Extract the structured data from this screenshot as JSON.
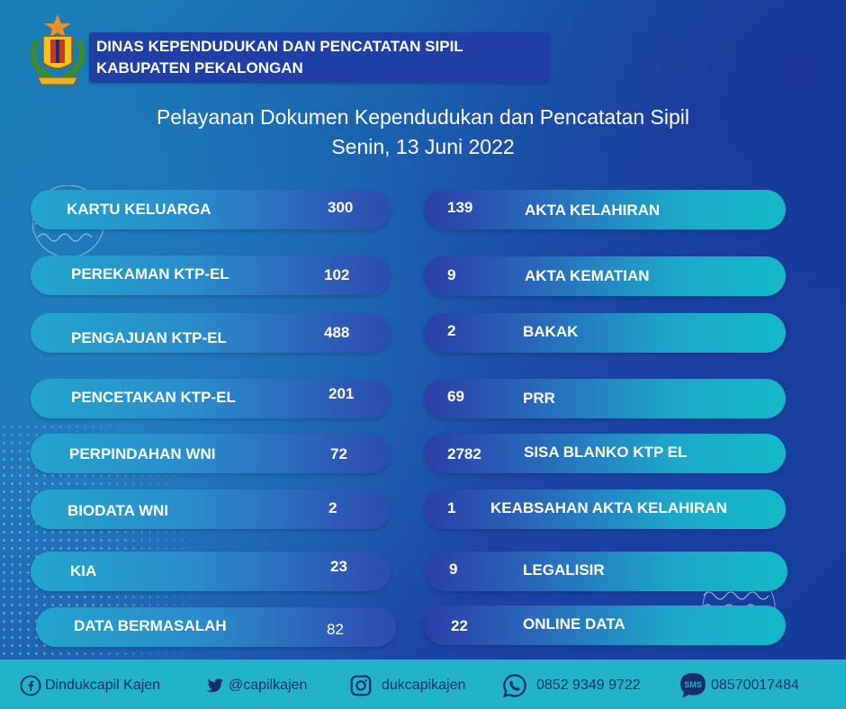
{
  "header": {
    "line1": "DINAS KEPENDUDUKAN DAN PENCATATAN SIPIL",
    "line2": "KABUPATEN PEKALONGAN"
  },
  "title": {
    "line1": "Pelayanan Dokumen Kependudukan dan Pencatatan Sipil",
    "line2": "Senin, 13 Juni 2022"
  },
  "left_items": [
    {
      "label": "KARTU KELUARGA",
      "value": "300"
    },
    {
      "label": "PEREKAMAN KTP-EL",
      "value": "102"
    },
    {
      "label": "PENGAJUAN KTP-EL",
      "value": "488"
    },
    {
      "label": "PENCETAKAN KTP-EL",
      "value": "201"
    },
    {
      "label": "PERPINDAHAN WNI",
      "value": "72"
    },
    {
      "label": "BIODATA WNI",
      "value": "2"
    },
    {
      "label": "KIA",
      "value": "23"
    },
    {
      "label": "DATA BERMASALAH",
      "value": "82"
    }
  ],
  "right_items": [
    {
      "label": "AKTA KELAHIRAN",
      "value": "139"
    },
    {
      "label": "AKTA KEMATIAN",
      "value": "9"
    },
    {
      "label": "BAKAK",
      "value": "2"
    },
    {
      "label": "PRR",
      "value": "69"
    },
    {
      "label": "SISA BLANKO KTP EL",
      "value": "2782"
    },
    {
      "label": "KEABSAHAN AKTA KELAHIRAN",
      "value": "1"
    },
    {
      "label": "LEGALISIR",
      "value": "9"
    },
    {
      "label": "ONLINE DATA",
      "value": "22"
    }
  ],
  "footer": {
    "facebook": "Dindukcapil Kajen",
    "twitter": "@capilkajen",
    "instagram": "dukcapikajen",
    "whatsapp": "0852 9349 9722",
    "sms": "08570017484",
    "sms_badge": "SMS",
    "icons": [
      "facebook-icon",
      "twitter-icon",
      "instagram-icon",
      "whatsapp-icon",
      "sms-icon"
    ]
  },
  "colors": {
    "background": "#1c5fb0",
    "header_box": "#1f3fa6",
    "footer": "#23b3c6",
    "pill_cyan": "#21a6cc",
    "pill_blue": "#2c4cb1"
  }
}
